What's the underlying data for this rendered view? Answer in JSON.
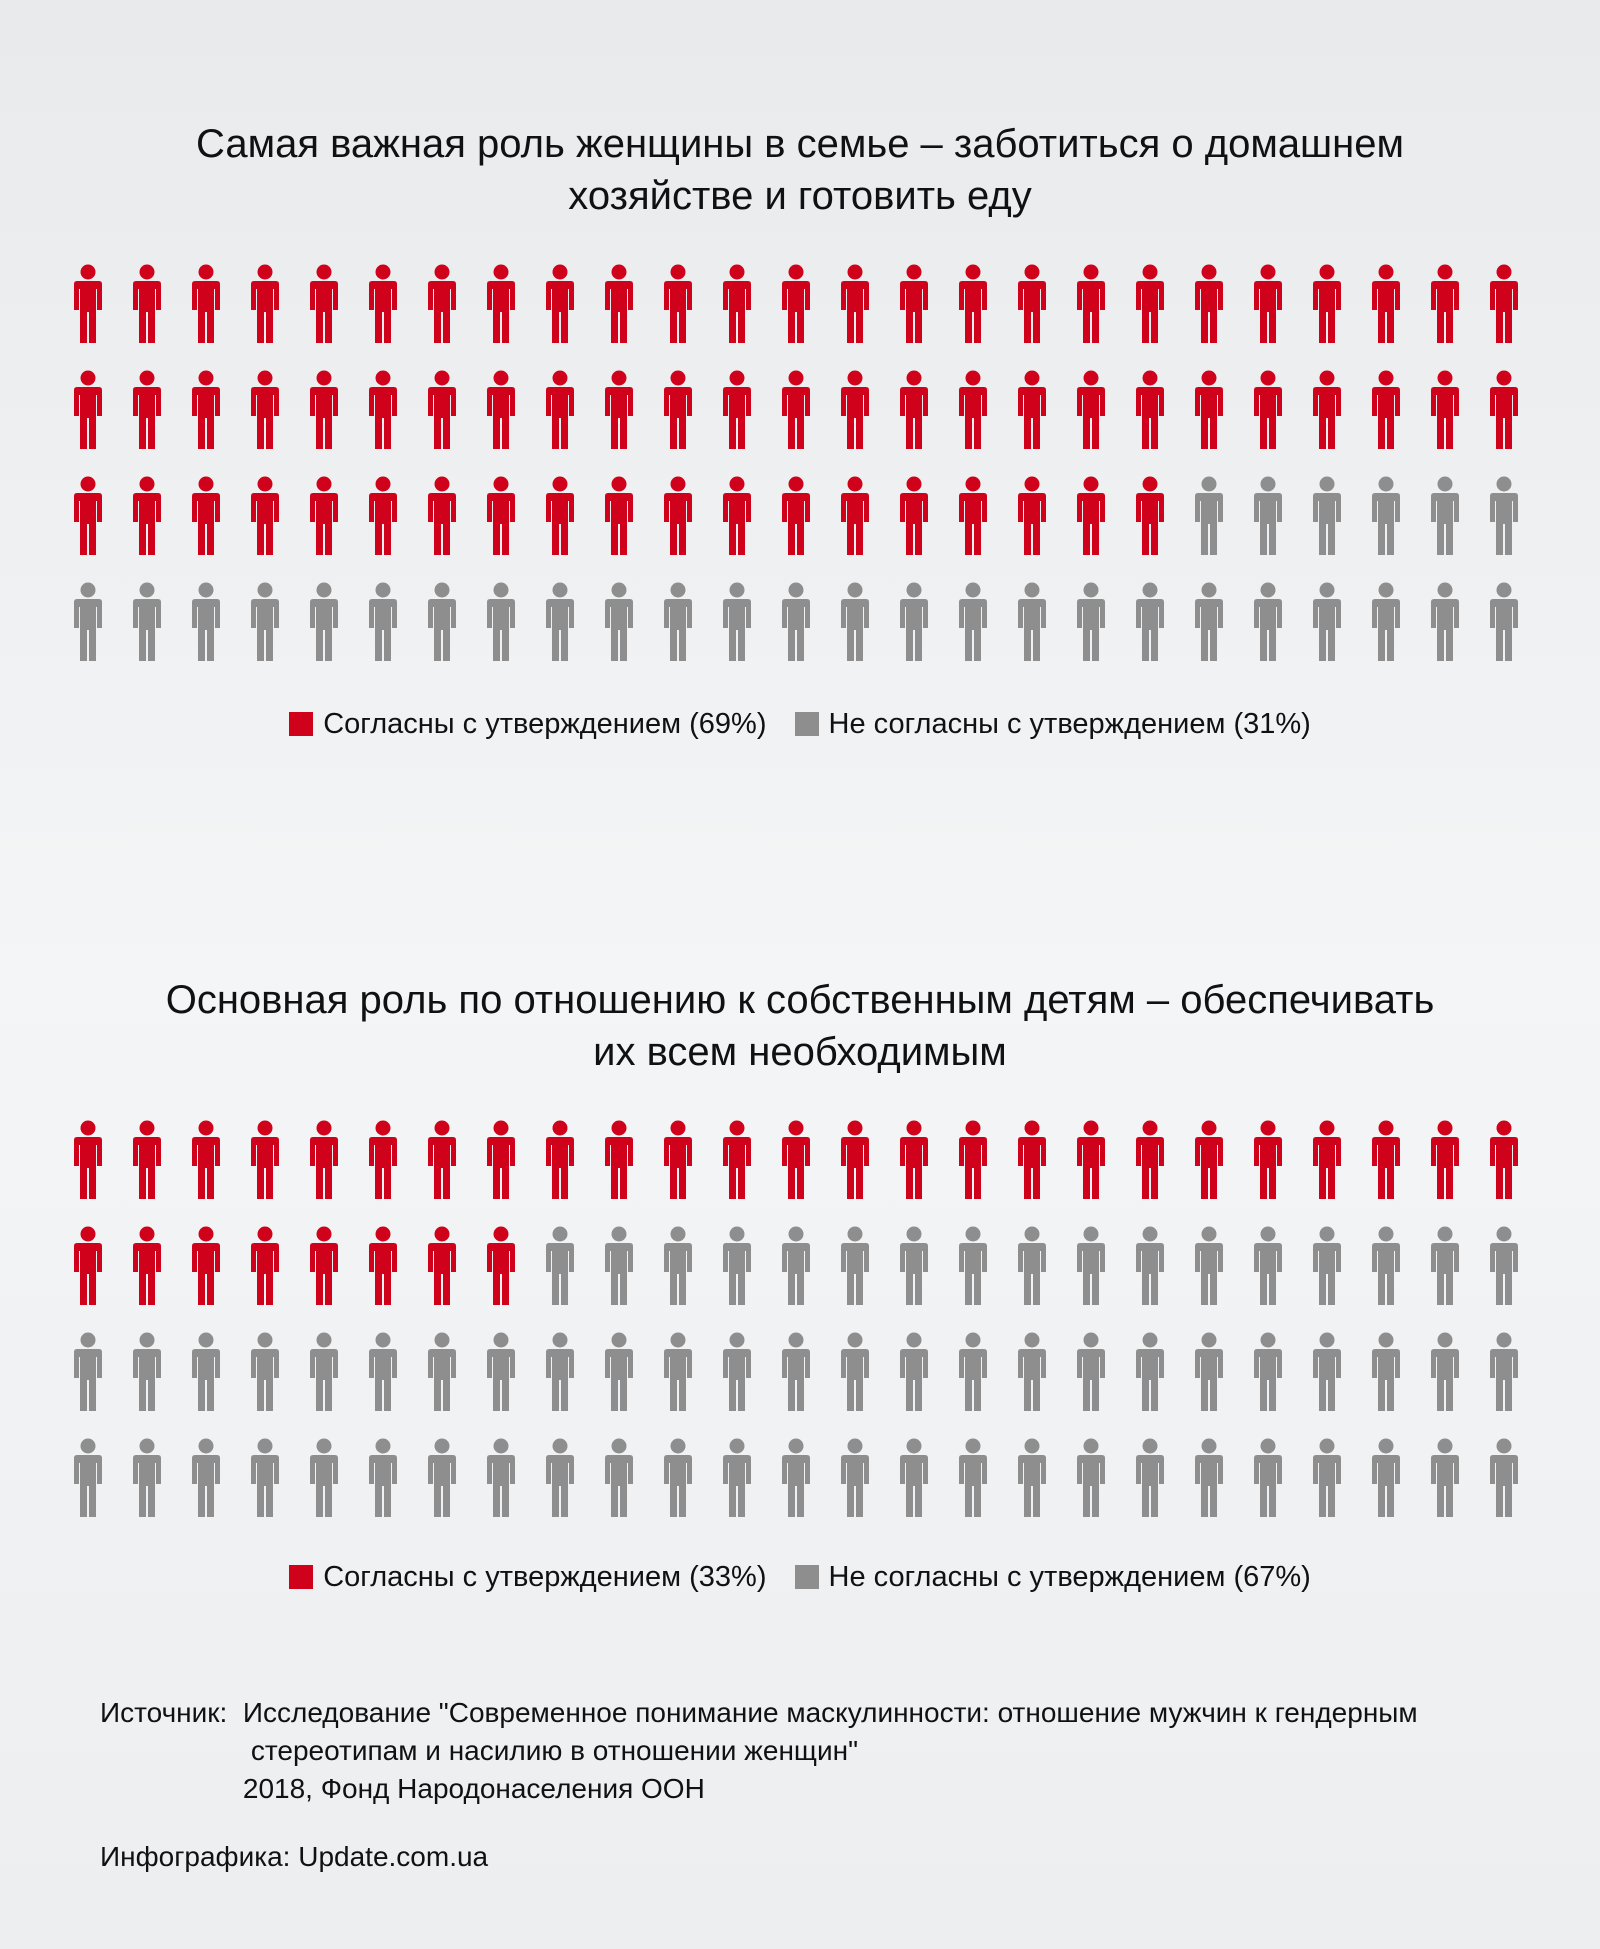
{
  "colors": {
    "agree": "#d0021b",
    "disagree": "#8e8e8e"
  },
  "icons": {
    "figure": "person-icon"
  },
  "chart_data": [
    {
      "type": "pictogram",
      "title_lines": [
        "Самая важная роль женщины в семье – заботиться о домашнем",
        "хозяйстве и готовить еду"
      ],
      "total": 100,
      "rows": 4,
      "per_row": 25,
      "series": [
        {
          "name": "Согласны с утверждением",
          "label": "Согласны с утверждением (69%)",
          "value": 69,
          "color": "#d0021b"
        },
        {
          "name": "Не согласны с утверждением",
          "label": "Не согласны с утверждением (31%)",
          "value": 31,
          "color": "#8e8e8e"
        }
      ]
    },
    {
      "type": "pictogram",
      "title_lines": [
        "Основная роль по отношению к собственным детям – обеспечивать",
        "их всем необходимым"
      ],
      "total": 100,
      "rows": 4,
      "per_row": 25,
      "series": [
        {
          "name": "Согласны с утверждением",
          "label": "Согласны с утверждением (33%)",
          "value": 33,
          "color": "#d0021b"
        },
        {
          "name": "Не согласны с утверждением",
          "label": "Не согласны с утверждением (67%)",
          "value": 67,
          "color": "#8e8e8e"
        }
      ]
    }
  ],
  "source": {
    "label": "Источник:  ",
    "lines": [
      "Исследование \"Современное понимание маскулинности: отношение мужчин к гендерным",
      "стереотипам и насилию в отношении женщин\"",
      "2018, Фонд Народонаселения ООН"
    ]
  },
  "credit": "Инфографика: Update.com.ua"
}
